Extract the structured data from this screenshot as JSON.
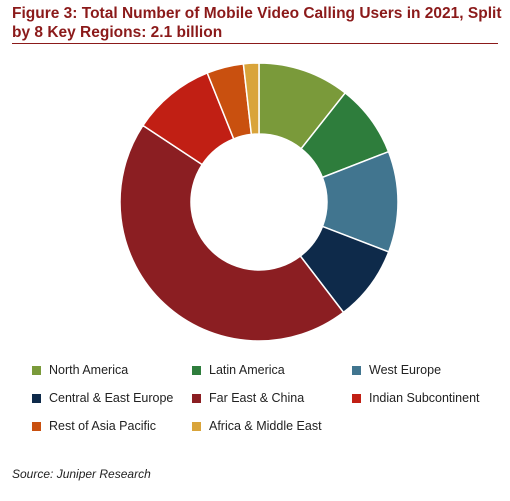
{
  "title": "Figure 3: Total Number of Mobile Video Calling Users in 2021, Split by 8 Key Regions: 2.1 billion",
  "source": "Source: Juniper Research",
  "chart_data": {
    "type": "pie",
    "donut": true,
    "legend_position": "bottom",
    "series": [
      {
        "name": "North America",
        "value": 10.7,
        "color": "#7a9a3a"
      },
      {
        "name": "Latin America",
        "value": 8.5,
        "color": "#2e7d3c"
      },
      {
        "name": "West Europe",
        "value": 11.8,
        "color": "#41758f"
      },
      {
        "name": "Central & East Europe",
        "value": 8.8,
        "color": "#0e2a4a"
      },
      {
        "name": "Far East & China",
        "value": 44.9,
        "color": "#8b1e22"
      },
      {
        "name": "Indian Subcontinent",
        "value": 9.7,
        "color": "#c11f14"
      },
      {
        "name": "Rest of Asia Pacific",
        "value": 4.3,
        "color": "#c9500f"
      },
      {
        "name": "Africa & Middle East",
        "value": 1.8,
        "color": "#d9a43a"
      }
    ]
  }
}
